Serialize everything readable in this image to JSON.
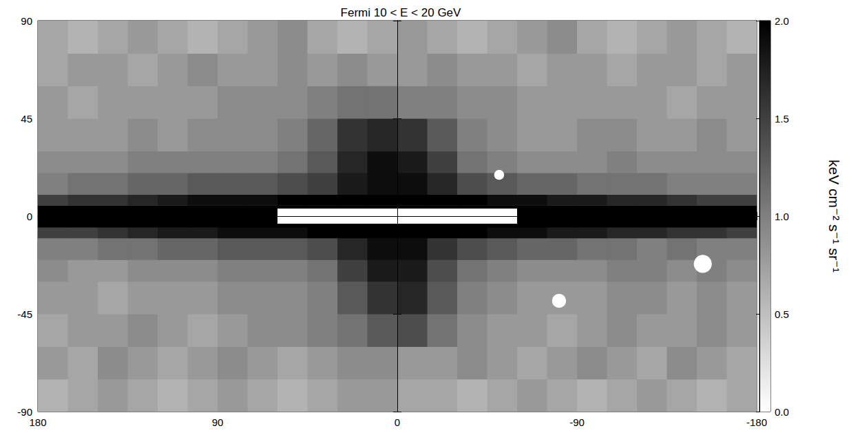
{
  "chart_data": {
    "type": "heatmap",
    "title": "Fermi 10 < E < 20 GeV",
    "xlim": [
      180,
      -180
    ],
    "xticks": [
      180,
      90,
      0,
      -90,
      -180
    ],
    "ylim": [
      -90,
      90
    ],
    "yticks": [
      -90,
      -45,
      0,
      45,
      90
    ],
    "x_edges": [
      180,
      165,
      150,
      135,
      120,
      105,
      90,
      75,
      60,
      45,
      30,
      15,
      0,
      -15,
      -30,
      -45,
      -60,
      -75,
      -90,
      -105,
      -120,
      -135,
      -150,
      -165,
      -180
    ],
    "y_edges": [
      -90,
      -75,
      -60,
      -45,
      -30,
      -20,
      -10,
      -5,
      0,
      5,
      10,
      20,
      30,
      45,
      60,
      75,
      90
    ],
    "cells": [
      [
        0.6,
        0.7,
        0.8,
        0.7,
        0.6,
        0.7,
        0.8,
        0.7,
        0.6,
        0.7,
        0.8,
        0.8,
        0.7,
        0.7,
        0.6,
        0.7,
        0.8,
        0.7,
        0.6,
        0.7,
        0.8,
        0.7,
        0.6,
        0.7
      ],
      [
        0.8,
        0.7,
        0.9,
        0.8,
        0.7,
        0.8,
        0.9,
        0.8,
        0.7,
        0.8,
        0.9,
        0.9,
        0.8,
        0.8,
        0.9,
        0.8,
        0.7,
        0.8,
        0.9,
        0.8,
        0.7,
        0.9,
        0.8,
        0.7
      ],
      [
        0.7,
        0.8,
        0.8,
        0.9,
        0.8,
        0.7,
        0.8,
        0.9,
        0.9,
        1.0,
        1.1,
        1.3,
        1.4,
        1.1,
        0.9,
        0.8,
        0.8,
        0.7,
        0.8,
        0.9,
        0.8,
        0.8,
        0.9,
        0.8
      ],
      [
        0.8,
        0.8,
        0.7,
        0.8,
        0.8,
        0.8,
        0.9,
        0.9,
        0.9,
        1.0,
        1.3,
        1.6,
        1.7,
        1.3,
        1.0,
        0.9,
        0.8,
        0.8,
        0.8,
        0.9,
        0.9,
        0.8,
        0.9,
        0.8
      ],
      [
        0.9,
        0.8,
        0.8,
        0.9,
        0.9,
        0.9,
        1.0,
        1.0,
        1.0,
        1.1,
        1.5,
        1.8,
        1.8,
        1.4,
        1.1,
        1.0,
        0.9,
        0.9,
        0.9,
        1.0,
        1.0,
        0.9,
        1.0,
        0.9
      ],
      [
        1.0,
        1.0,
        1.1,
        1.1,
        1.2,
        1.2,
        1.3,
        1.3,
        1.3,
        1.4,
        1.7,
        1.9,
        1.9,
        1.6,
        1.4,
        1.3,
        1.2,
        1.2,
        1.1,
        1.1,
        1.0,
        1.1,
        1.0,
        1.0
      ],
      [
        1.5,
        1.5,
        1.6,
        1.7,
        1.8,
        1.8,
        1.9,
        1.9,
        1.9,
        2.0,
        2.0,
        2.0,
        2.0,
        2.0,
        2.0,
        1.9,
        1.9,
        1.8,
        1.8,
        1.7,
        1.7,
        1.6,
        1.6,
        1.5
      ],
      [
        2.0,
        2.0,
        2.0,
        2.0,
        2.0,
        2.0,
        2.0,
        2.0,
        2.0,
        2.0,
        2.0,
        2.0,
        2.0,
        2.0,
        2.0,
        2.0,
        2.0,
        2.0,
        2.0,
        2.0,
        2.0,
        2.0,
        2.0,
        2.0
      ],
      [
        2.0,
        2.0,
        2.0,
        2.0,
        2.0,
        2.0,
        2.0,
        2.0,
        2.0,
        2.0,
        2.0,
        2.0,
        2.0,
        2.0,
        2.0,
        2.0,
        2.0,
        2.0,
        2.0,
        2.0,
        2.0,
        2.0,
        2.0,
        2.0
      ],
      [
        1.5,
        1.6,
        1.6,
        1.7,
        1.8,
        1.9,
        1.9,
        1.9,
        2.0,
        2.0,
        2.0,
        2.0,
        2.0,
        2.0,
        2.0,
        1.9,
        1.9,
        1.8,
        1.8,
        1.7,
        1.7,
        1.6,
        1.5,
        1.5
      ],
      [
        1.0,
        1.1,
        1.1,
        1.2,
        1.2,
        1.3,
        1.3,
        1.3,
        1.4,
        1.5,
        1.8,
        1.9,
        1.9,
        1.7,
        1.4,
        1.3,
        1.2,
        1.2,
        1.1,
        1.1,
        1.1,
        1.0,
        1.0,
        1.0
      ],
      [
        0.9,
        0.9,
        0.9,
        1.0,
        1.0,
        1.0,
        1.0,
        1.0,
        1.1,
        1.3,
        1.7,
        1.9,
        1.8,
        1.5,
        1.1,
        1.0,
        0.9,
        0.9,
        0.9,
        1.0,
        0.9,
        0.9,
        0.9,
        0.9
      ],
      [
        0.8,
        0.8,
        0.8,
        0.9,
        0.8,
        0.9,
        0.9,
        0.9,
        1.0,
        1.2,
        1.6,
        1.7,
        1.6,
        1.3,
        1.0,
        0.9,
        0.8,
        0.8,
        0.9,
        0.9,
        0.8,
        0.8,
        0.9,
        0.8
      ],
      [
        0.8,
        0.7,
        0.8,
        0.8,
        0.8,
        0.8,
        0.9,
        0.9,
        0.9,
        1.0,
        1.1,
        1.1,
        1.0,
        1.0,
        0.9,
        0.9,
        0.8,
        0.8,
        0.8,
        0.8,
        0.8,
        0.7,
        0.8,
        0.8
      ],
      [
        0.7,
        0.8,
        0.8,
        0.7,
        0.8,
        0.9,
        0.8,
        0.8,
        0.9,
        0.8,
        0.9,
        0.8,
        0.8,
        0.9,
        0.8,
        0.8,
        0.7,
        0.8,
        0.8,
        0.7,
        0.8,
        0.8,
        0.7,
        0.8
      ],
      [
        0.7,
        0.6,
        0.7,
        0.8,
        0.7,
        0.6,
        0.7,
        0.8,
        0.9,
        0.7,
        0.6,
        0.7,
        0.8,
        0.7,
        0.6,
        0.7,
        0.8,
        0.9,
        0.7,
        0.6,
        0.7,
        0.8,
        0.7,
        0.6
      ]
    ],
    "masks": {
      "rects": [
        {
          "x": [
            60,
            -60
          ],
          "y": [
            -3.5,
            3.5
          ]
        }
      ],
      "circles": [
        {
          "x": -51,
          "y": 19,
          "radius": 2.5
        },
        {
          "x": -81,
          "y": -39,
          "radius": 3.5
        },
        {
          "x": -153,
          "y": -22,
          "radius": 4.5
        }
      ]
    },
    "colorbar": {
      "range": [
        0,
        2
      ],
      "ticks": [
        {
          "value": 0,
          "label": "0.0"
        },
        {
          "value": 0.5,
          "label": "0.5"
        },
        {
          "value": 1,
          "label": "1.0"
        },
        {
          "value": 1.5,
          "label": "1.5"
        },
        {
          "value": 2,
          "label": "2.0"
        }
      ],
      "label": "keV cm⁻² s⁻¹ sr⁻¹",
      "colors": [
        "#ffffff",
        "#000000"
      ]
    }
  }
}
